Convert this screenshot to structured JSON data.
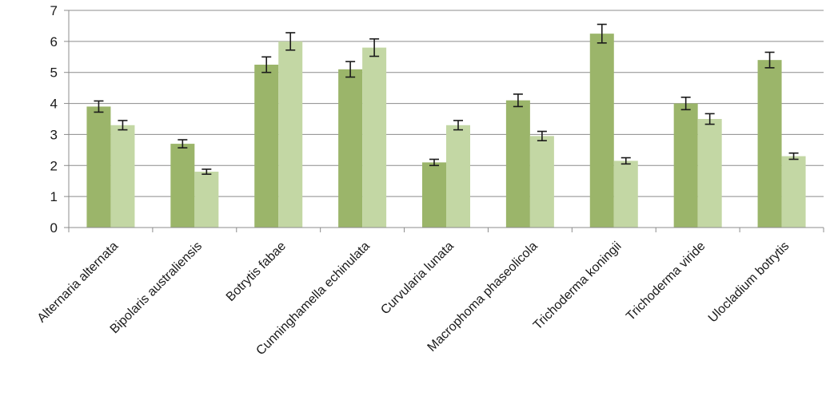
{
  "chart_data": {
    "type": "bar",
    "title": "",
    "xlabel": "",
    "ylabel": "",
    "ylim": [
      0,
      7
    ],
    "yticks": [
      0,
      1,
      2,
      3,
      4,
      5,
      6,
      7
    ],
    "grid": "horizontal",
    "legend": "none",
    "categories": [
      "Alternaria alternata",
      "Bipolaris australiensis",
      "Botrytis fabae",
      "Cunninghamella echinulata",
      "Curvularia lunata",
      "Macrophoma phaseolicola",
      "Trichoderma koningii",
      "Trichoderma viride",
      "Ulocladium botrytis"
    ],
    "series": [
      {
        "color": "#9bb56a",
        "values": [
          3.9,
          2.7,
          5.25,
          5.1,
          2.1,
          4.1,
          6.25,
          4.0,
          5.4
        ],
        "errors": [
          0.18,
          0.13,
          0.25,
          0.25,
          0.1,
          0.2,
          0.3,
          0.2,
          0.25
        ]
      },
      {
        "color": "#c3d7a4",
        "values": [
          3.3,
          1.8,
          6.0,
          5.8,
          3.3,
          2.95,
          2.15,
          3.5,
          2.3
        ],
        "errors": [
          0.15,
          0.08,
          0.28,
          0.28,
          0.15,
          0.15,
          0.1,
          0.17,
          0.1
        ]
      }
    ]
  }
}
